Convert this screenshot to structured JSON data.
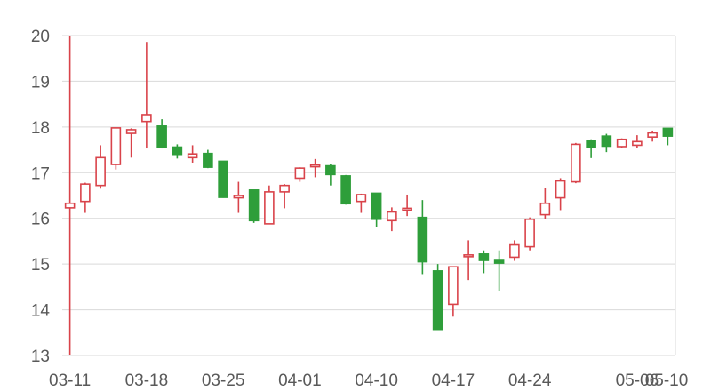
{
  "chart_data": {
    "type": "candlestick",
    "title": "",
    "xlabel": "",
    "ylabel": "",
    "ylim": [
      13,
      20
    ],
    "yticks": [
      13,
      14,
      15,
      16,
      17,
      18,
      19,
      20
    ],
    "x_tick_labels": [
      "03-11",
      "03-18",
      "03-25",
      "04-01",
      "04-10",
      "04-17",
      "04-24",
      "05-06",
      "05-10"
    ],
    "x_tick_positions": [
      0,
      5,
      10,
      15,
      20,
      25,
      30,
      37,
      40
    ],
    "grid": "horizontal",
    "up_color": "#d9434a",
    "down_color": "#2e9e3a",
    "candles": [
      {
        "i": 0,
        "open": 16.23,
        "close": 16.33,
        "high": 20.0,
        "low": 13.0
      },
      {
        "i": 1,
        "open": 16.37,
        "close": 16.75,
        "high": 16.78,
        "low": 16.12
      },
      {
        "i": 2,
        "open": 16.72,
        "close": 17.33,
        "high": 17.6,
        "low": 16.65
      },
      {
        "i": 3,
        "open": 17.18,
        "close": 17.98,
        "high": 17.98,
        "low": 17.07
      },
      {
        "i": 4,
        "open": 17.86,
        "close": 17.94,
        "high": 17.97,
        "low": 17.33
      },
      {
        "i": 5,
        "open": 18.12,
        "close": 18.27,
        "high": 19.86,
        "low": 17.53
      },
      {
        "i": 6,
        "open": 18.02,
        "close": 17.56,
        "high": 18.17,
        "low": 17.53
      },
      {
        "i": 7,
        "open": 17.56,
        "close": 17.4,
        "high": 17.62,
        "low": 17.31
      },
      {
        "i": 8,
        "open": 17.33,
        "close": 17.41,
        "high": 17.6,
        "low": 17.22
      },
      {
        "i": 9,
        "open": 17.42,
        "close": 17.12,
        "high": 17.5,
        "low": 17.1
      },
      {
        "i": 10,
        "open": 17.25,
        "close": 16.46,
        "high": 17.25,
        "low": 16.45
      },
      {
        "i": 11,
        "open": 16.45,
        "close": 16.5,
        "high": 16.8,
        "low": 16.12
      },
      {
        "i": 12,
        "open": 16.62,
        "close": 15.95,
        "high": 16.62,
        "low": 15.9
      },
      {
        "i": 13,
        "open": 15.88,
        "close": 16.58,
        "high": 16.72,
        "low": 15.88
      },
      {
        "i": 14,
        "open": 16.58,
        "close": 16.72,
        "high": 16.75,
        "low": 16.22
      },
      {
        "i": 15,
        "open": 16.88,
        "close": 17.1,
        "high": 17.12,
        "low": 16.8
      },
      {
        "i": 16,
        "open": 17.13,
        "close": 17.17,
        "high": 17.3,
        "low": 16.9
      },
      {
        "i": 17,
        "open": 17.15,
        "close": 16.96,
        "high": 17.2,
        "low": 16.72
      },
      {
        "i": 18,
        "open": 16.93,
        "close": 16.32,
        "high": 16.95,
        "low": 16.3
      },
      {
        "i": 19,
        "open": 16.37,
        "close": 16.52,
        "high": 16.54,
        "low": 16.12
      },
      {
        "i": 20,
        "open": 16.55,
        "close": 15.98,
        "high": 16.55,
        "low": 15.8
      },
      {
        "i": 21,
        "open": 15.95,
        "close": 16.14,
        "high": 16.24,
        "low": 15.72
      },
      {
        "i": 22,
        "open": 16.18,
        "close": 16.22,
        "high": 16.52,
        "low": 16.05
      },
      {
        "i": 23,
        "open": 16.02,
        "close": 15.05,
        "high": 16.4,
        "low": 14.78
      },
      {
        "i": 24,
        "open": 14.85,
        "close": 13.57,
        "high": 15.0,
        "low": 13.57
      },
      {
        "i": 25,
        "open": 14.12,
        "close": 14.94,
        "high": 14.95,
        "low": 13.85
      },
      {
        "i": 26,
        "open": 15.17,
        "close": 15.2,
        "high": 15.52,
        "low": 14.65
      },
      {
        "i": 27,
        "open": 15.22,
        "close": 15.08,
        "high": 15.3,
        "low": 14.8
      },
      {
        "i": 28,
        "open": 15.08,
        "close": 15.02,
        "high": 15.3,
        "low": 14.4
      },
      {
        "i": 29,
        "open": 15.15,
        "close": 15.42,
        "high": 15.52,
        "low": 15.07
      },
      {
        "i": 30,
        "open": 15.38,
        "close": 15.98,
        "high": 16.02,
        "low": 15.3
      },
      {
        "i": 31,
        "open": 16.08,
        "close": 16.33,
        "high": 16.67,
        "low": 15.98
      },
      {
        "i": 32,
        "open": 16.45,
        "close": 16.82,
        "high": 16.88,
        "low": 16.18
      },
      {
        "i": 33,
        "open": 16.8,
        "close": 17.62,
        "high": 17.65,
        "low": 16.77
      },
      {
        "i": 34,
        "open": 17.7,
        "close": 17.55,
        "high": 17.73,
        "low": 17.32
      },
      {
        "i": 35,
        "open": 17.8,
        "close": 17.58,
        "high": 17.85,
        "low": 17.45
      },
      {
        "i": 36,
        "open": 17.57,
        "close": 17.73,
        "high": 17.75,
        "low": 17.55
      },
      {
        "i": 37,
        "open": 17.6,
        "close": 17.68,
        "high": 17.82,
        "low": 17.55
      },
      {
        "i": 38,
        "open": 17.78,
        "close": 17.87,
        "high": 17.92,
        "low": 17.68
      },
      {
        "i": 39,
        "open": 17.97,
        "close": 17.8,
        "high": 17.97,
        "low": 17.6
      }
    ]
  }
}
